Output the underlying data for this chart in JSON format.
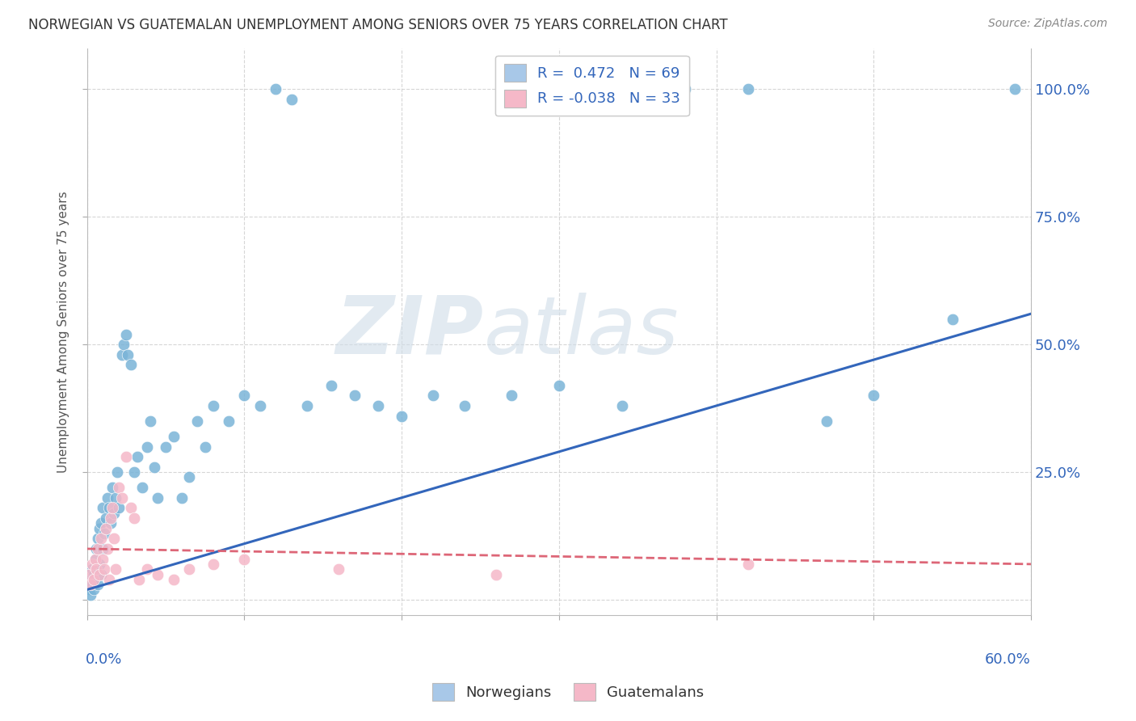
{
  "title": "NORWEGIAN VS GUATEMALAN UNEMPLOYMENT AMONG SENIORS OVER 75 YEARS CORRELATION CHART",
  "source": "Source: ZipAtlas.com",
  "ylabel": "Unemployment Among Seniors over 75 years",
  "right_yticks": [
    0.0,
    0.25,
    0.5,
    0.75,
    1.0
  ],
  "right_yticklabels": [
    "",
    "25.0%",
    "50.0%",
    "75.0%",
    "100.0%"
  ],
  "legend_entries": [
    {
      "label": "R =  0.472   N = 69",
      "color": "#a8c8e8"
    },
    {
      "label": "R = -0.038   N = 33",
      "color": "#f5b8c8"
    }
  ],
  "legend_bottom": [
    "Norwegians",
    "Guatemalans"
  ],
  "norwegian_color": "#7ab4d8",
  "guatemalan_color": "#f5b8c8",
  "norwegian_line_color": "#3366bb",
  "guatemalan_line_color": "#dd6677",
  "background_color": "#ffffff",
  "grid_color": "#cccccc",
  "watermark_zip": "ZIP",
  "watermark_atlas": "atlas",
  "xlim": [
    0.0,
    0.6
  ],
  "ylim": [
    -0.03,
    1.08
  ],
  "norwegian_x": [
    0.001,
    0.002,
    0.002,
    0.003,
    0.003,
    0.004,
    0.004,
    0.005,
    0.005,
    0.006,
    0.006,
    0.007,
    0.007,
    0.008,
    0.008,
    0.009,
    0.009,
    0.01,
    0.01,
    0.011,
    0.012,
    0.013,
    0.014,
    0.015,
    0.016,
    0.017,
    0.018,
    0.019,
    0.02,
    0.022,
    0.023,
    0.025,
    0.026,
    0.028,
    0.03,
    0.032,
    0.035,
    0.038,
    0.04,
    0.043,
    0.045,
    0.05,
    0.055,
    0.06,
    0.065,
    0.07,
    0.075,
    0.08,
    0.09,
    0.1,
    0.11,
    0.12,
    0.13,
    0.14,
    0.155,
    0.17,
    0.185,
    0.2,
    0.22,
    0.24,
    0.27,
    0.3,
    0.34,
    0.38,
    0.42,
    0.47,
    0.5,
    0.55,
    0.59
  ],
  "norwegian_y": [
    0.02,
    0.04,
    0.01,
    0.06,
    0.03,
    0.05,
    0.02,
    0.08,
    0.04,
    0.1,
    0.06,
    0.03,
    0.12,
    0.07,
    0.14,
    0.05,
    0.15,
    0.1,
    0.18,
    0.13,
    0.16,
    0.2,
    0.18,
    0.15,
    0.22,
    0.17,
    0.2,
    0.25,
    0.18,
    0.48,
    0.5,
    0.52,
    0.48,
    0.46,
    0.25,
    0.28,
    0.22,
    0.3,
    0.35,
    0.26,
    0.2,
    0.3,
    0.32,
    0.2,
    0.24,
    0.35,
    0.3,
    0.38,
    0.35,
    0.4,
    0.38,
    1.0,
    0.98,
    0.38,
    0.42,
    0.4,
    0.38,
    0.36,
    0.4,
    0.38,
    0.4,
    0.42,
    0.38,
    1.0,
    1.0,
    0.35,
    0.4,
    0.55,
    1.0
  ],
  "guatemalan_x": [
    0.001,
    0.002,
    0.003,
    0.004,
    0.005,
    0.006,
    0.007,
    0.008,
    0.009,
    0.01,
    0.011,
    0.012,
    0.013,
    0.014,
    0.015,
    0.016,
    0.017,
    0.018,
    0.02,
    0.022,
    0.025,
    0.028,
    0.03,
    0.033,
    0.038,
    0.045,
    0.055,
    0.065,
    0.08,
    0.1,
    0.16,
    0.26,
    0.42
  ],
  "guatemalan_y": [
    0.05,
    0.03,
    0.07,
    0.04,
    0.08,
    0.06,
    0.1,
    0.05,
    0.12,
    0.08,
    0.06,
    0.14,
    0.1,
    0.04,
    0.16,
    0.18,
    0.12,
    0.06,
    0.22,
    0.2,
    0.28,
    0.18,
    0.16,
    0.04,
    0.06,
    0.05,
    0.04,
    0.06,
    0.07,
    0.08,
    0.06,
    0.05,
    0.07
  ],
  "nor_line_x": [
    0.0,
    0.6
  ],
  "nor_line_y": [
    0.02,
    0.56
  ],
  "gua_line_x": [
    0.0,
    0.6
  ],
  "gua_line_y": [
    0.1,
    0.07
  ]
}
